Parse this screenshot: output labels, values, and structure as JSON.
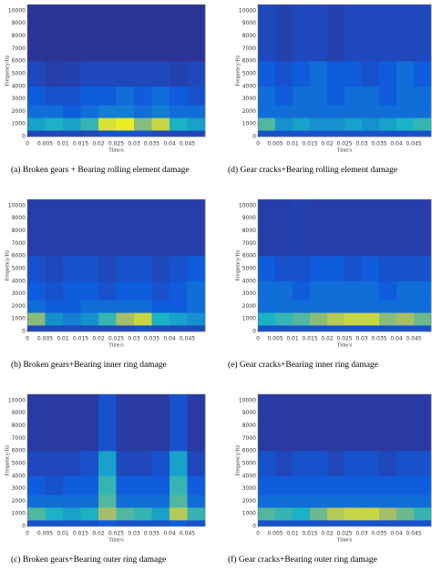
{
  "colormap": [
    "#352a87",
    "#0f5cdd",
    "#1ab2c4",
    "#a5be6a",
    "#f9fb0e"
  ],
  "chart_data": [
    {
      "type": "heatmap",
      "title": "(a) Broken gears + Bearing rolling element damage",
      "x_label": "Time/s",
      "y_label": "Frequency/Hz",
      "xlim": [
        0,
        0.05
      ],
      "xticks": [
        0,
        0.005,
        0.01,
        0.015,
        0.02,
        0.025,
        0.03,
        0.035,
        0.04,
        0.045
      ],
      "ylim": [
        0,
        10500
      ],
      "yticks": [
        0,
        1000,
        2000,
        3000,
        4000,
        5000,
        6000,
        7000,
        8000,
        9000,
        10000
      ],
      "xbins": [
        0,
        0.005,
        0.01,
        0.015,
        0.02,
        0.025,
        0.03,
        0.035,
        0.04,
        0.045,
        0.05
      ],
      "ybins": [
        0,
        500,
        1500,
        2500,
        4000,
        6000,
        10500
      ],
      "z": [
        [
          0.15,
          0.15,
          0.15,
          0.15,
          0.2,
          0.2,
          0.2,
          0.15,
          0.15,
          0.15
        ],
        [
          0.45,
          0.5,
          0.45,
          0.55,
          0.9,
          0.95,
          0.7,
          0.85,
          0.5,
          0.45
        ],
        [
          0.3,
          0.3,
          0.25,
          0.3,
          0.35,
          0.35,
          0.3,
          0.35,
          0.3,
          0.3
        ],
        [
          0.25,
          0.2,
          0.2,
          0.25,
          0.25,
          0.3,
          0.25,
          0.3,
          0.25,
          0.2
        ],
        [
          0.15,
          0.1,
          0.12,
          0.15,
          0.15,
          0.15,
          0.15,
          0.15,
          0.12,
          0.15
        ],
        [
          0.05,
          0.05,
          0.05,
          0.05,
          0.05,
          0.05,
          0.05,
          0.05,
          0.05,
          0.05
        ]
      ]
    },
    {
      "type": "heatmap",
      "title": "(d) Gear cracks+Bearing rolling element damage",
      "x_label": "Time/s",
      "y_label": "Frequency/Hz",
      "xlim": [
        0,
        0.05
      ],
      "xticks": [
        0,
        0.005,
        0.01,
        0.015,
        0.02,
        0.025,
        0.03,
        0.035,
        0.04,
        0.045
      ],
      "ylim": [
        0,
        10500
      ],
      "yticks": [
        0,
        1000,
        2000,
        3000,
        4000,
        5000,
        6000,
        7000,
        8000,
        9000,
        10000
      ],
      "xbins": [
        0,
        0.005,
        0.01,
        0.015,
        0.02,
        0.025,
        0.03,
        0.035,
        0.04,
        0.045,
        0.05
      ],
      "ybins": [
        0,
        500,
        1500,
        2500,
        4000,
        6000,
        10500
      ],
      "z": [
        [
          0.2,
          0.2,
          0.2,
          0.2,
          0.2,
          0.2,
          0.2,
          0.2,
          0.2,
          0.2
        ],
        [
          0.6,
          0.4,
          0.45,
          0.4,
          0.4,
          0.45,
          0.4,
          0.45,
          0.5,
          0.55
        ],
        [
          0.3,
          0.3,
          0.3,
          0.3,
          0.3,
          0.3,
          0.3,
          0.3,
          0.3,
          0.3
        ],
        [
          0.3,
          0.25,
          0.3,
          0.3,
          0.25,
          0.3,
          0.3,
          0.25,
          0.3,
          0.3
        ],
        [
          0.25,
          0.2,
          0.25,
          0.3,
          0.25,
          0.25,
          0.2,
          0.25,
          0.3,
          0.25
        ],
        [
          0.15,
          0.12,
          0.15,
          0.15,
          0.12,
          0.15,
          0.15,
          0.15,
          0.15,
          0.15
        ]
      ]
    },
    {
      "type": "heatmap",
      "title": "(b) Broken gears+Bearing inner ring damage",
      "x_label": "Time/s",
      "y_label": "Frequency/Hz",
      "xlim": [
        0,
        0.05
      ],
      "xticks": [
        0,
        0.005,
        0.01,
        0.015,
        0.02,
        0.025,
        0.03,
        0.035,
        0.04,
        0.045
      ],
      "ylim": [
        0,
        10500
      ],
      "yticks": [
        0,
        1000,
        2000,
        3000,
        4000,
        5000,
        6000,
        7000,
        8000,
        9000,
        10000
      ],
      "xbins": [
        0,
        0.005,
        0.01,
        0.015,
        0.02,
        0.025,
        0.03,
        0.035,
        0.04,
        0.045,
        0.05
      ],
      "ybins": [
        0,
        500,
        1500,
        2500,
        4000,
        6000,
        10500
      ],
      "z": [
        [
          0.15,
          0.15,
          0.15,
          0.15,
          0.15,
          0.15,
          0.2,
          0.15,
          0.15,
          0.15
        ],
        [
          0.7,
          0.4,
          0.35,
          0.4,
          0.55,
          0.75,
          0.85,
          0.5,
          0.45,
          0.4
        ],
        [
          0.3,
          0.25,
          0.25,
          0.3,
          0.3,
          0.3,
          0.3,
          0.25,
          0.25,
          0.3
        ],
        [
          0.25,
          0.2,
          0.25,
          0.25,
          0.2,
          0.25,
          0.25,
          0.2,
          0.25,
          0.3
        ],
        [
          0.2,
          0.15,
          0.2,
          0.2,
          0.15,
          0.2,
          0.2,
          0.15,
          0.2,
          0.25
        ],
        [
          0.1,
          0.1,
          0.1,
          0.1,
          0.1,
          0.1,
          0.1,
          0.1,
          0.1,
          0.1
        ]
      ]
    },
    {
      "type": "heatmap",
      "title": "(e) Gear cracks+Bearing inner ring damage",
      "x_label": "Time/s",
      "y_label": "Frequency/Hz",
      "xlim": [
        0,
        0.05
      ],
      "xticks": [
        0,
        0.005,
        0.01,
        0.015,
        0.02,
        0.025,
        0.03,
        0.035,
        0.04,
        0.045
      ],
      "ylim": [
        0,
        10500
      ],
      "yticks": [
        0,
        1000,
        2000,
        3000,
        4000,
        5000,
        6000,
        7000,
        8000,
        9000,
        10000
      ],
      "xbins": [
        0,
        0.005,
        0.01,
        0.015,
        0.02,
        0.025,
        0.03,
        0.035,
        0.04,
        0.045,
        0.05
      ],
      "ybins": [
        0,
        500,
        1500,
        2500,
        4000,
        6000,
        10500
      ],
      "z": [
        [
          0.2,
          0.2,
          0.2,
          0.2,
          0.2,
          0.2,
          0.2,
          0.2,
          0.2,
          0.2
        ],
        [
          0.5,
          0.55,
          0.6,
          0.7,
          0.8,
          0.85,
          0.85,
          0.7,
          0.75,
          0.65
        ],
        [
          0.3,
          0.3,
          0.3,
          0.3,
          0.3,
          0.3,
          0.3,
          0.3,
          0.3,
          0.3
        ],
        [
          0.3,
          0.3,
          0.25,
          0.3,
          0.3,
          0.3,
          0.3,
          0.25,
          0.3,
          0.3
        ],
        [
          0.25,
          0.2,
          0.2,
          0.25,
          0.25,
          0.2,
          0.25,
          0.2,
          0.2,
          0.2
        ],
        [
          0.1,
          0.1,
          0.12,
          0.1,
          0.1,
          0.1,
          0.1,
          0.1,
          0.1,
          0.1
        ]
      ]
    },
    {
      "type": "heatmap",
      "title": "(c) Broken gears+Bearing outer ring damage",
      "x_label": "Time/s",
      "y_label": "Frequency/Hz",
      "xlim": [
        0,
        0.05
      ],
      "xticks": [
        0,
        0.005,
        0.01,
        0.015,
        0.02,
        0.025,
        0.03,
        0.035,
        0.04,
        0.045
      ],
      "ylim": [
        0,
        10500
      ],
      "yticks": [
        0,
        1000,
        2000,
        3000,
        4000,
        5000,
        6000,
        7000,
        8000,
        9000,
        10000
      ],
      "xbins": [
        0,
        0.005,
        0.01,
        0.015,
        0.02,
        0.025,
        0.03,
        0.035,
        0.04,
        0.045,
        0.05
      ],
      "ybins": [
        0,
        500,
        1500,
        2500,
        4000,
        6000,
        10500
      ],
      "z": [
        [
          0.2,
          0.2,
          0.2,
          0.2,
          0.25,
          0.2,
          0.2,
          0.2,
          0.25,
          0.2
        ],
        [
          0.6,
          0.5,
          0.45,
          0.5,
          0.75,
          0.6,
          0.55,
          0.45,
          0.8,
          0.55
        ],
        [
          0.3,
          0.3,
          0.3,
          0.3,
          0.6,
          0.3,
          0.3,
          0.3,
          0.6,
          0.3
        ],
        [
          0.25,
          0.2,
          0.25,
          0.25,
          0.55,
          0.25,
          0.25,
          0.25,
          0.55,
          0.25
        ],
        [
          0.15,
          0.15,
          0.15,
          0.2,
          0.45,
          0.15,
          0.15,
          0.2,
          0.45,
          0.15
        ],
        [
          0.08,
          0.08,
          0.08,
          0.08,
          0.2,
          0.08,
          0.08,
          0.08,
          0.2,
          0.08
        ]
      ]
    },
    {
      "type": "heatmap",
      "title": "(f) Gear cracks+Bearing outer ring damage",
      "x_label": "Time/s",
      "y_label": "Frequency/Hz",
      "xlim": [
        0,
        0.05
      ],
      "xticks": [
        0,
        0.005,
        0.01,
        0.015,
        0.02,
        0.025,
        0.03,
        0.035,
        0.04,
        0.045
      ],
      "ylim": [
        0,
        10500
      ],
      "yticks": [
        0,
        1000,
        2000,
        3000,
        4000,
        5000,
        6000,
        7000,
        8000,
        9000,
        10000
      ],
      "xbins": [
        0,
        0.005,
        0.01,
        0.015,
        0.02,
        0.025,
        0.03,
        0.035,
        0.04,
        0.045,
        0.05
      ],
      "ybins": [
        0,
        500,
        1500,
        2500,
        4000,
        6000,
        10500
      ],
      "z": [
        [
          0.2,
          0.2,
          0.2,
          0.2,
          0.2,
          0.2,
          0.2,
          0.2,
          0.2,
          0.2
        ],
        [
          0.6,
          0.55,
          0.5,
          0.65,
          0.8,
          0.85,
          0.85,
          0.75,
          0.65,
          0.55
        ],
        [
          0.3,
          0.3,
          0.3,
          0.3,
          0.3,
          0.3,
          0.3,
          0.3,
          0.3,
          0.3
        ],
        [
          0.25,
          0.25,
          0.25,
          0.25,
          0.25,
          0.25,
          0.25,
          0.25,
          0.25,
          0.25
        ],
        [
          0.2,
          0.15,
          0.2,
          0.2,
          0.15,
          0.2,
          0.2,
          0.15,
          0.2,
          0.2
        ],
        [
          0.08,
          0.08,
          0.08,
          0.08,
          0.08,
          0.08,
          0.08,
          0.08,
          0.08,
          0.08
        ]
      ]
    }
  ]
}
